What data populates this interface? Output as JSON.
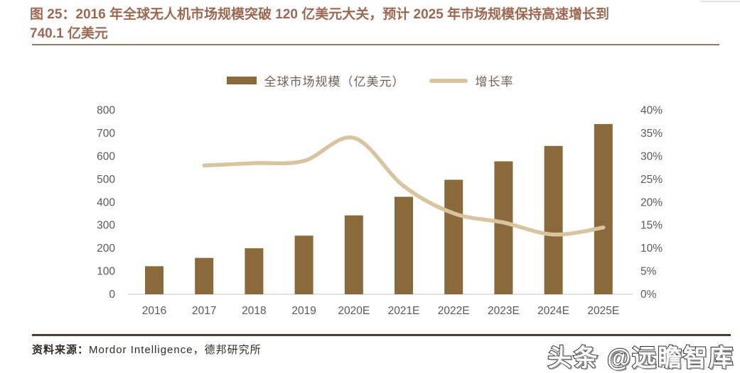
{
  "title": {
    "line1": "图 25：2016 年全球无人机市场规模突破 120 亿美元大关，预计 2025 年市场规模保持高速增长到",
    "line2": "740.1 亿美元"
  },
  "legend": {
    "series1": "全球市场规模（亿美元）",
    "series2": "增长率"
  },
  "chart_data": {
    "type": "bar",
    "subtype": "bar-line-combo",
    "categories": [
      "2016",
      "2017",
      "2018",
      "2019",
      "2020E",
      "2021E",
      "2022E",
      "2023E",
      "2024E",
      "2025E"
    ],
    "series": [
      {
        "name": "全球市场规模（亿美元）",
        "type": "bar",
        "axis": "left",
        "values": [
          122,
          158,
          200,
          255,
          343,
          424,
          498,
          578,
          645,
          740.1
        ]
      },
      {
        "name": "增长率",
        "type": "line",
        "axis": "right",
        "values": [
          null,
          28,
          28.5,
          29,
          34,
          23.5,
          17.6,
          15.6,
          13,
          14.5
        ]
      }
    ],
    "left_axis": {
      "min": 0,
      "max": 800,
      "step": 100,
      "ticks": [
        "0",
        "100",
        "200",
        "300",
        "400",
        "500",
        "600",
        "700",
        "800"
      ]
    },
    "right_axis": {
      "min": 0,
      "max": 40,
      "step": 5,
      "ticks": [
        "0%",
        "5%",
        "10%",
        "15%",
        "20%",
        "25%",
        "30%",
        "35%",
        "40%"
      ]
    },
    "grid": false,
    "legend_position": "top"
  },
  "footer": {
    "source_label": "资料来源：",
    "source_text": "Mordor Intelligence，德邦研究所"
  },
  "watermark": "头条 @远瞻智库",
  "colors": {
    "title": "#9e6850",
    "bar": "#8a693a",
    "line": "#d8c49e",
    "axis_text": "#595959",
    "baseline": "#d9d9d9",
    "rule_top": "#8d7b67",
    "rule_bottom": "#4f3a2d",
    "legend_text": "#6f6257"
  }
}
